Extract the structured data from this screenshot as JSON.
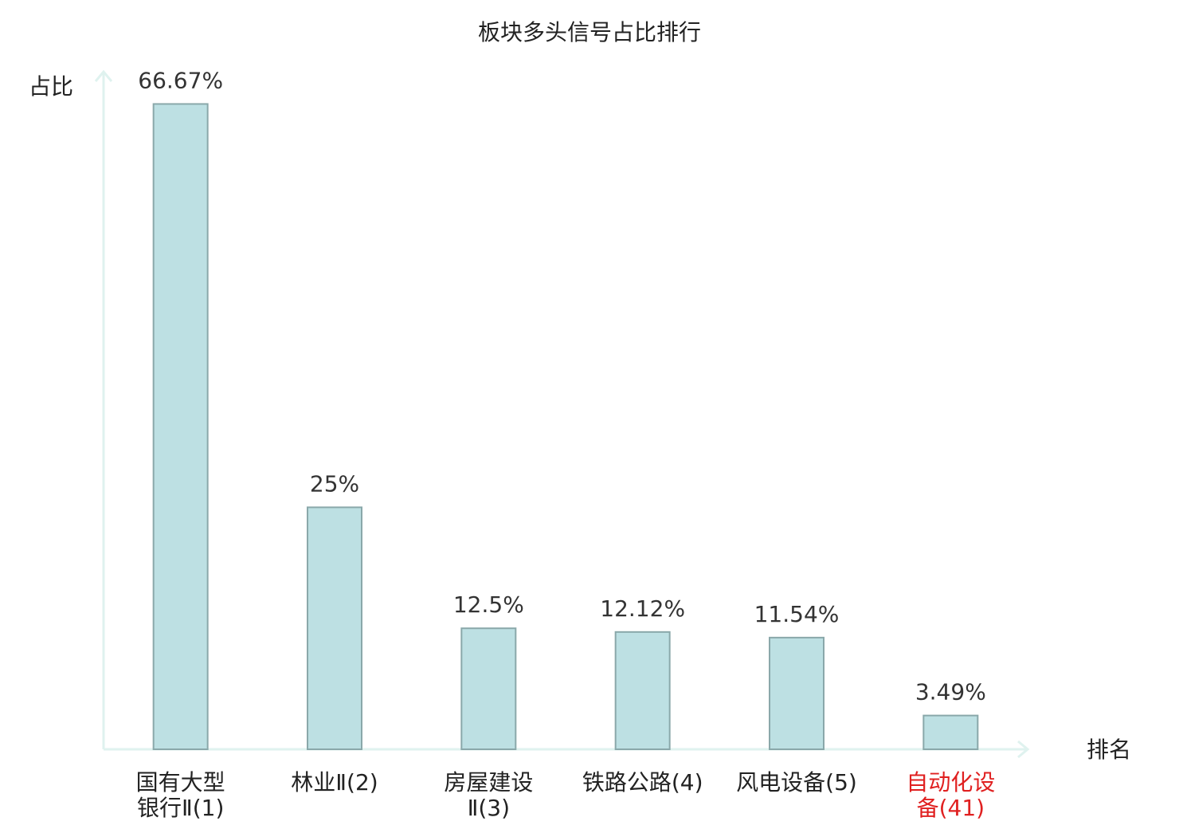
{
  "chart_data": {
    "type": "bar",
    "title": "板块多头信号占比排行",
    "y_label": "占比",
    "x_label": "排名",
    "categories": [
      "国有大型银行Ⅱ(1)",
      "林业Ⅱ(2)",
      "房屋建设Ⅱ(3)",
      "铁路公路(4)",
      "风电设备(5)",
      "自动化设备(41)"
    ],
    "values": [
      66.67,
      25,
      12.5,
      12.12,
      11.54,
      3.49
    ],
    "value_labels": [
      "66.67%",
      "25%",
      "12.5%",
      "12.12%",
      "11.54%",
      "3.49%"
    ],
    "color": "#bde0e3",
    "edge_color": "#8aa8aa",
    "highlight_index": 5,
    "highlight_color": "#e02020",
    "ylim": [
      0,
      70
    ]
  }
}
